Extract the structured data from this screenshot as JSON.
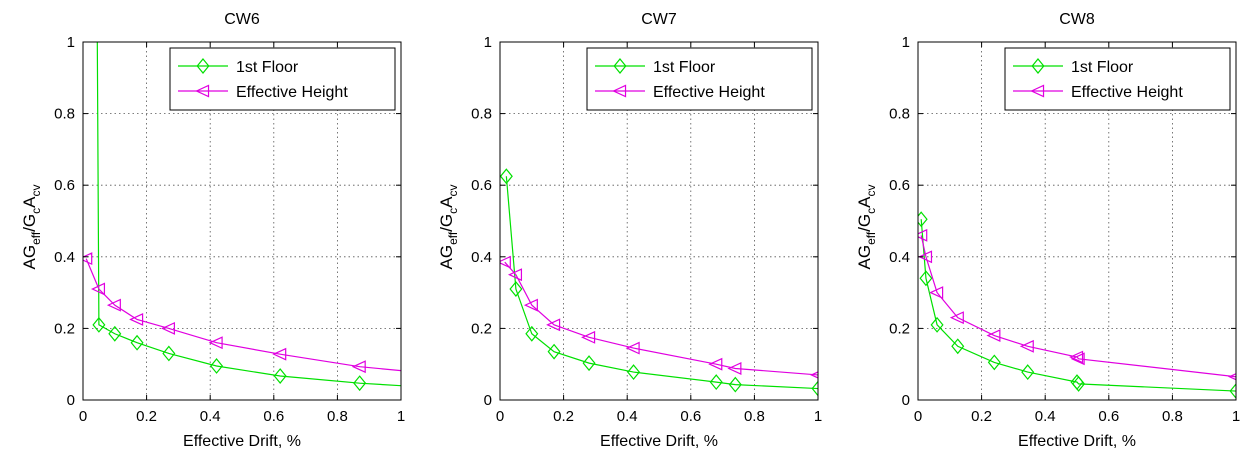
{
  "chart_data": [
    {
      "type": "line",
      "title": "CW6",
      "xlabel": "Effective Drift, %",
      "ylabel_parts": {
        "a": "AG",
        "eff": "eff",
        "slash": "/G",
        "c": "c",
        "A": "A",
        "cv": "cv"
      },
      "xlim": [
        0,
        1
      ],
      "ylim": [
        0,
        1
      ],
      "xticks": [
        "0",
        "0.2",
        "0.4",
        "0.6",
        "0.8",
        "1"
      ],
      "yticks": [
        "0",
        "0.2",
        "0.4",
        "0.6",
        "0.8",
        "1"
      ],
      "grid": true,
      "legend_position": "top-right",
      "series": [
        {
          "name": "1st Floor",
          "color": "#00e000",
          "marker": "diamond",
          "x": [
            0.045,
            0.05,
            0.1,
            0.17,
            0.27,
            0.42,
            0.62,
            0.87,
            1.0
          ],
          "y": [
            1.0,
            0.21,
            0.185,
            0.16,
            0.13,
            0.095,
            0.067,
            0.047,
            0.04
          ],
          "marker_mask": [
            false,
            true,
            true,
            true,
            true,
            true,
            true,
            true,
            false
          ]
        },
        {
          "name": "Effective Height",
          "color": "#e000e0",
          "marker": "triangle-left",
          "x": [
            0.01,
            0.05,
            0.1,
            0.17,
            0.27,
            0.42,
            0.62,
            0.87,
            1.0
          ],
          "y": [
            0.395,
            0.31,
            0.265,
            0.225,
            0.2,
            0.16,
            0.128,
            0.093,
            0.082
          ],
          "marker_mask": [
            true,
            true,
            true,
            true,
            true,
            true,
            true,
            true,
            false
          ]
        }
      ]
    },
    {
      "type": "line",
      "title": "CW7",
      "xlabel": "Effective Drift, %",
      "ylabel_parts": {
        "a": "AG",
        "eff": "eff",
        "slash": "/G",
        "c": "c",
        "A": "A",
        "cv": "cv"
      },
      "xlim": [
        0,
        1
      ],
      "ylim": [
        0,
        1
      ],
      "xticks": [
        "0",
        "0.2",
        "0.4",
        "0.6",
        "0.8",
        "1"
      ],
      "yticks": [
        "0",
        "0.2",
        "0.4",
        "0.6",
        "0.8",
        "1"
      ],
      "grid": true,
      "legend_position": "top-right",
      "series": [
        {
          "name": "1st Floor",
          "color": "#00e000",
          "marker": "diamond",
          "x": [
            0.02,
            0.05,
            0.1,
            0.17,
            0.28,
            0.42,
            0.68,
            0.74,
            1.0
          ],
          "y": [
            0.625,
            0.31,
            0.185,
            0.135,
            0.103,
            0.078,
            0.05,
            0.043,
            0.032
          ],
          "marker_mask": [
            true,
            true,
            true,
            true,
            true,
            true,
            true,
            true,
            true
          ]
        },
        {
          "name": "Effective Height",
          "color": "#e000e0",
          "marker": "triangle-left",
          "x": [
            0.015,
            0.05,
            0.1,
            0.17,
            0.28,
            0.42,
            0.68,
            0.74,
            1.0
          ],
          "y": [
            0.385,
            0.35,
            0.265,
            0.21,
            0.175,
            0.145,
            0.1,
            0.088,
            0.07
          ],
          "marker_mask": [
            true,
            true,
            true,
            true,
            true,
            true,
            true,
            true,
            true
          ]
        }
      ]
    },
    {
      "type": "line",
      "title": "CW8",
      "xlabel": "Effective Drift, %",
      "ylabel_parts": {
        "a": "AG",
        "eff": "eff",
        "slash": "/G",
        "c": "c",
        "A": "A",
        "cv": "cv"
      },
      "xlim": [
        0,
        1
      ],
      "ylim": [
        0,
        1
      ],
      "xticks": [
        "0",
        "0.2",
        "0.4",
        "0.6",
        "0.8",
        "1"
      ],
      "yticks": [
        "0",
        "0.2",
        "0.4",
        "0.6",
        "0.8",
        "1"
      ],
      "grid": true,
      "legend_position": "top-right",
      "series": [
        {
          "name": "1st Floor",
          "color": "#00e000",
          "marker": "diamond",
          "x": [
            0.01,
            0.025,
            0.06,
            0.125,
            0.24,
            0.345,
            0.5,
            0.505,
            1.0
          ],
          "y": [
            0.505,
            0.34,
            0.21,
            0.15,
            0.105,
            0.078,
            0.05,
            0.045,
            0.025
          ],
          "marker_mask": [
            true,
            true,
            true,
            true,
            true,
            true,
            true,
            true,
            true
          ]
        },
        {
          "name": "Effective Height",
          "color": "#e000e0",
          "marker": "triangle-left",
          "x": [
            0.01,
            0.025,
            0.06,
            0.125,
            0.24,
            0.345,
            0.5,
            0.505,
            1.0
          ],
          "y": [
            0.46,
            0.4,
            0.3,
            0.23,
            0.18,
            0.15,
            0.12,
            0.115,
            0.065
          ],
          "marker_mask": [
            true,
            true,
            true,
            true,
            true,
            true,
            true,
            true,
            true
          ]
        }
      ]
    }
  ]
}
